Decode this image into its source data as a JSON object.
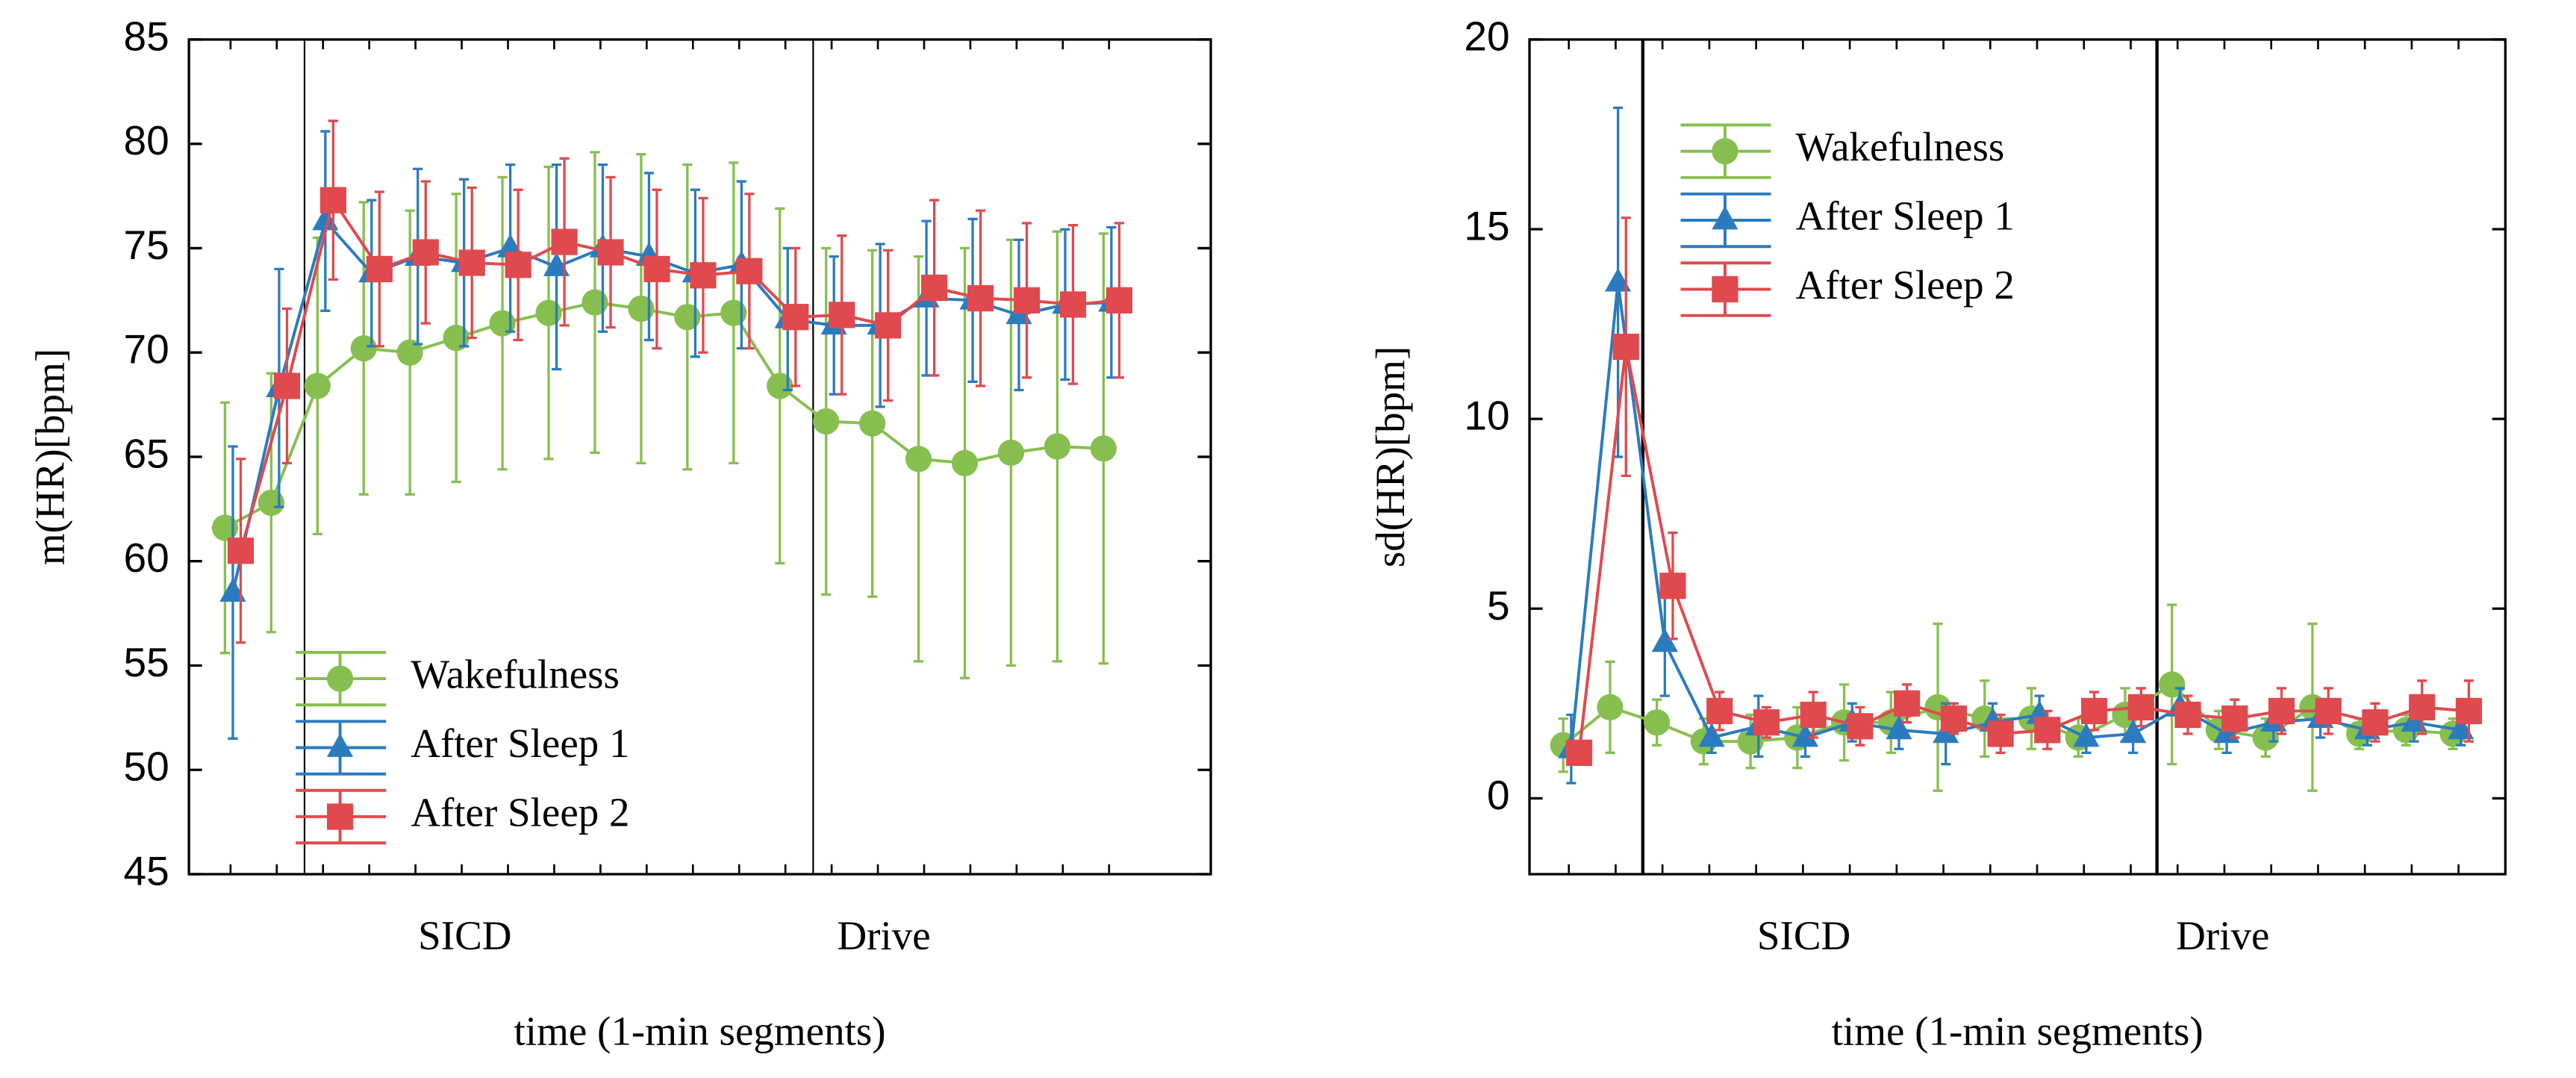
{
  "chart_data": [
    {
      "type": "line",
      "ylabel": "m(HR)[bpm]",
      "xlabel": "time (1-min segments)",
      "annotations": [
        "SICD",
        "Drive"
      ],
      "vlines": [
        2.6,
        13.6
      ],
      "x": [
        1,
        2,
        3,
        4,
        5,
        6,
        7,
        8,
        9,
        10,
        11,
        12,
        13,
        14,
        15,
        16,
        17,
        18,
        19,
        20
      ],
      "xlim": [
        0.1,
        22.2
      ],
      "ylim": [
        45,
        85
      ],
      "yticks": [
        45,
        50,
        55,
        60,
        65,
        70,
        75,
        80,
        85
      ],
      "legend": "lower left",
      "series": [
        {
          "name": "Wakefulness",
          "color": "#86bf4f",
          "marker": "circle",
          "values": [
            61.6,
            62.8,
            68.4,
            70.2,
            70.0,
            70.7,
            71.4,
            71.9,
            72.4,
            72.1,
            71.7,
            71.9,
            68.4,
            66.7,
            66.6,
            64.9,
            64.7,
            65.2,
            65.5,
            65.4
          ],
          "errors": [
            6,
            6.2,
            7.1,
            7,
            6.8,
            6.9,
            7,
            7,
            7.2,
            7.4,
            7.3,
            7.2,
            8.5,
            8.3,
            8.3,
            9.7,
            10.3,
            10.2,
            10.3,
            10.3
          ]
        },
        {
          "name": "After Sleep 1",
          "color": "#2b7bbf",
          "marker": "triangle",
          "values": [
            58.5,
            68.3,
            76.3,
            73.8,
            74.6,
            74.3,
            75.0,
            74.1,
            75.0,
            74.6,
            73.8,
            74.2,
            71.6,
            71.3,
            71.3,
            72.6,
            72.5,
            71.8,
            72.3,
            72.4
          ],
          "errors": [
            7,
            5.7,
            4.3,
            3.5,
            4.2,
            4,
            4,
            4.9,
            4,
            4,
            4,
            4,
            3.4,
            3.3,
            3.9,
            3.7,
            3.9,
            3.6,
            3.6,
            3.6
          ]
        },
        {
          "name": "After Sleep 2",
          "color": "#e04a4e",
          "marker": "square",
          "values": [
            60.5,
            68.4,
            77.3,
            74.0,
            74.8,
            74.3,
            74.2,
            75.3,
            74.8,
            74.0,
            73.7,
            73.9,
            71.7,
            71.8,
            71.3,
            73.1,
            72.6,
            72.5,
            72.3,
            72.5
          ],
          "errors": [
            4.4,
            3.7,
            3.8,
            3.7,
            3.4,
            3.6,
            3.6,
            4,
            3.6,
            3.8,
            3.7,
            3.7,
            3.3,
            3.8,
            3.6,
            4.2,
            4.2,
            3.7,
            3.8,
            3.7
          ]
        }
      ]
    },
    {
      "type": "line",
      "ylabel": "sd(HR)[bpm]",
      "xlabel": "time (1-min segments)",
      "annotations": [
        "SICD",
        "Drive"
      ],
      "vlines": [
        2.58,
        13.56
      ],
      "x": [
        1,
        2,
        3,
        4,
        5,
        6,
        7,
        8,
        9,
        10,
        11,
        12,
        13,
        14,
        15,
        16,
        17,
        18,
        19,
        20
      ],
      "xlim": [
        0.16,
        21
      ],
      "ylim": [
        -2,
        20
      ],
      "yticks": [
        0,
        5,
        10,
        15,
        20
      ],
      "legend": "upper left",
      "series": [
        {
          "name": "Wakefulness",
          "color": "#86bf4f",
          "marker": "circle",
          "values": [
            1.4,
            2.4,
            2.0,
            1.5,
            1.5,
            1.6,
            2.0,
            2.0,
            2.4,
            2.1,
            2.1,
            1.6,
            2.2,
            3.0,
            1.8,
            1.6,
            2.4,
            1.7,
            1.8,
            1.7
          ],
          "errors": [
            0.7,
            1.2,
            0.6,
            0.6,
            0.7,
            0.8,
            1,
            0.8,
            2.2,
            1,
            0.8,
            0.5,
            0.7,
            2.1,
            0.5,
            0.5,
            2.2,
            0.4,
            0.4,
            0.4
          ]
        },
        {
          "name": "After Sleep 1",
          "color": "#2b7bbf",
          "marker": "triangle",
          "values": [
            1.3,
            13.6,
            4.1,
            1.6,
            1.9,
            1.6,
            2.0,
            1.8,
            1.7,
            2.0,
            2.2,
            1.6,
            1.7,
            2.4,
            1.7,
            2.0,
            2.1,
            1.8,
            2.0,
            1.8
          ],
          "errors": [
            0.9,
            4.6,
            1.4,
            0.4,
            0.8,
            0.5,
            0.5,
            0.5,
            0.8,
            0.5,
            0.5,
            0.4,
            0.5,
            0.5,
            0.5,
            0.5,
            0.5,
            0.4,
            0.5,
            0.4
          ]
        },
        {
          "name": "After Sleep 2",
          "color": "#e04a4e",
          "marker": "square",
          "values": [
            1.2,
            11.9,
            5.6,
            2.3,
            2.0,
            2.2,
            1.9,
            2.5,
            2.1,
            1.7,
            1.8,
            2.3,
            2.4,
            2.2,
            2.1,
            2.3,
            2.3,
            2.0,
            2.4,
            2.3
          ],
          "errors": [
            0.3,
            3.4,
            1.4,
            0.5,
            0.4,
            0.6,
            0.5,
            0.5,
            0.4,
            0.5,
            0.5,
            0.5,
            0.5,
            0.5,
            0.5,
            0.6,
            0.6,
            0.5,
            0.7,
            0.8
          ]
        }
      ]
    }
  ]
}
